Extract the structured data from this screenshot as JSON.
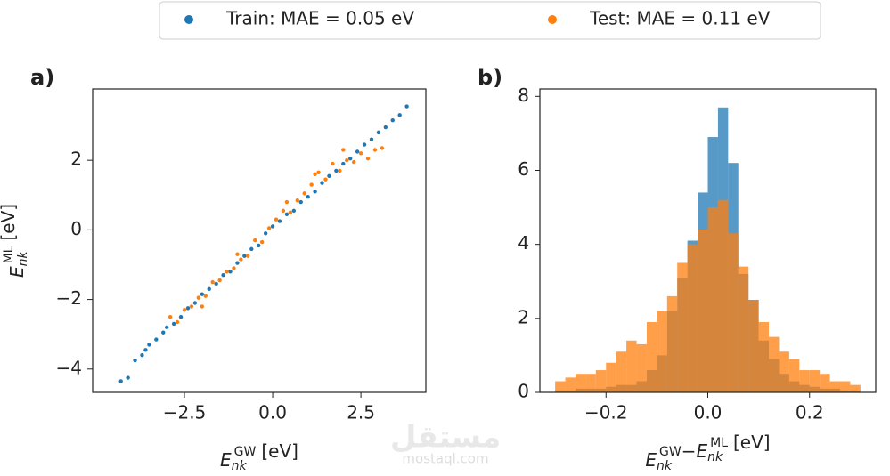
{
  "legend": {
    "position": "upper center"
  },
  "watermark": {
    "arabic": "مستقل",
    "latin": "mostaql.com"
  },
  "chart_data": [
    {
      "type": "scatter",
      "panel_label": "a)",
      "xlabel": {
        "symbol": "E",
        "sub": "nk",
        "sup": "GW",
        "unit": "[eV]"
      },
      "ylabel": {
        "symbol": "E",
        "sub": "nk",
        "sup": "ML",
        "unit": "[eV]"
      },
      "xlim": [
        -5.1,
        4.34
      ],
      "ylim": [
        -4.67,
        4.05
      ],
      "xticks": [
        {
          "value": -2.5,
          "label": "−2.5"
        },
        {
          "value": 0,
          "label": "0.0"
        },
        2.5
      ],
      "yticks": [
        {
          "value": -4,
          "label": "−4"
        },
        {
          "value": -2,
          "label": "−2"
        },
        0,
        2
      ],
      "series": [
        {
          "name": "Train: MAE = 0.05 eV",
          "color": "#1f77b4",
          "x": [
            -4.3,
            -4.1,
            -3.9,
            -3.7,
            -3.6,
            -3.5,
            -3.3,
            -3.1,
            -3.0,
            -2.8,
            -2.6,
            -2.4,
            -2.2,
            -2.0,
            -1.8,
            -1.6,
            -1.4,
            -1.2,
            -1.0,
            -0.8,
            -0.6,
            -0.4,
            -0.2,
            0.0,
            0.2,
            0.4,
            0.6,
            0.8,
            1.0,
            1.2,
            1.4,
            1.6,
            1.8,
            2.0,
            2.2,
            2.4,
            2.6,
            2.8,
            3.0,
            3.2,
            3.4,
            3.6,
            3.8
          ],
          "values": [
            -4.35,
            -4.25,
            -3.75,
            -3.6,
            -3.45,
            -3.3,
            -3.15,
            -2.95,
            -2.8,
            -2.7,
            -2.5,
            -2.25,
            -2.1,
            -1.85,
            -1.7,
            -1.55,
            -1.3,
            -1.2,
            -0.95,
            -0.75,
            -0.55,
            -0.45,
            -0.1,
            0.1,
            0.25,
            0.45,
            0.55,
            0.8,
            0.95,
            1.1,
            1.35,
            1.55,
            1.7,
            1.9,
            2.05,
            2.25,
            2.45,
            2.6,
            2.8,
            2.95,
            3.15,
            3.3,
            3.55
          ]
        },
        {
          "name": "Test: MAE = 0.11 eV",
          "color": "#ff7f0e",
          "x": [
            -2.9,
            -2.7,
            -2.5,
            -2.3,
            -2.1,
            -1.9,
            -1.7,
            -1.5,
            -1.3,
            -1.1,
            -0.9,
            -0.7,
            -0.5,
            -0.3,
            -0.1,
            0.1,
            0.3,
            0.5,
            0.7,
            0.9,
            1.1,
            1.3,
            1.5,
            1.7,
            1.9,
            2.1,
            2.3,
            2.5,
            2.7,
            2.9,
            3.1,
            -2.0,
            -1.0,
            0.4,
            1.2,
            2.0
          ],
          "values": [
            -2.5,
            -2.65,
            -2.3,
            -2.2,
            -1.95,
            -1.9,
            -1.5,
            -1.45,
            -1.2,
            -1.1,
            -0.85,
            -0.75,
            -0.3,
            -0.35,
            0.05,
            0.3,
            0.55,
            0.5,
            0.85,
            1.05,
            1.3,
            1.65,
            1.45,
            1.9,
            1.7,
            2.0,
            1.95,
            2.2,
            2.05,
            2.3,
            2.35,
            -2.2,
            -0.7,
            0.8,
            1.6,
            2.3
          ]
        }
      ]
    },
    {
      "type": "histogram",
      "panel_label": "b)",
      "xlabel": {
        "terms": [
          {
            "symbol": "E",
            "sub": "nk",
            "sup": "GW"
          },
          {
            "symbol": "E",
            "sub": "nk",
            "sup": "ML"
          }
        ],
        "operator": "−",
        "unit": "[eV]"
      },
      "xlim": [
        -0.33,
        0.33
      ],
      "ylim": [
        0,
        8.2
      ],
      "xticks": [
        {
          "value": -0.2,
          "label": "−0.2"
        },
        {
          "value": 0,
          "label": "0.0"
        },
        0.2
      ],
      "yticks": [
        0,
        2,
        4,
        6,
        8
      ],
      "bins": [
        -0.3,
        -0.28,
        -0.26,
        -0.24,
        -0.22,
        -0.2,
        -0.18,
        -0.16,
        -0.14,
        -0.12,
        -0.1,
        -0.08,
        -0.06,
        -0.04,
        -0.02,
        0,
        0.02,
        0.04,
        0.06,
        0.08,
        0.1,
        0.12,
        0.14,
        0.16,
        0.18,
        0.2,
        0.22,
        0.24,
        0.26,
        0.28,
        0.3
      ],
      "series": [
        {
          "color": "#1f77b4",
          "values": [
            0.05,
            0.05,
            0.1,
            0.1,
            0.1,
            0.15,
            0.2,
            0.2,
            0.3,
            0.6,
            1.0,
            2.2,
            3.1,
            4.1,
            5.4,
            6.9,
            7.7,
            6.2,
            3.2,
            2.5,
            1.4,
            0.9,
            0.5,
            0.3,
            0.2,
            0.15,
            0.1,
            0.1,
            0.05,
            0.05
          ]
        },
        {
          "color": "#ff7f0e",
          "values": [
            0.3,
            0.4,
            0.5,
            0.5,
            0.6,
            0.8,
            1.1,
            1.4,
            1.3,
            1.9,
            2.2,
            2.6,
            3.5,
            4.0,
            4.4,
            5.0,
            5.2,
            4.3,
            3.4,
            2.5,
            1.9,
            1.5,
            1.1,
            0.9,
            0.6,
            0.6,
            0.5,
            0.3,
            0.3,
            0.2
          ]
        }
      ]
    }
  ]
}
